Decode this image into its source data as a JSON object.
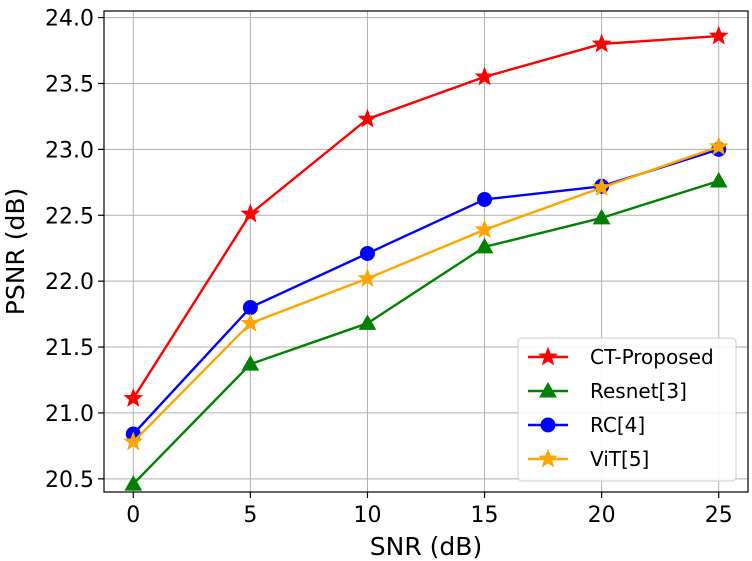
{
  "chart_data": {
    "type": "line",
    "title": "",
    "xlabel": "SNR (dB)",
    "ylabel": "PSNR (dB)",
    "x": [
      0,
      5,
      10,
      15,
      20,
      25
    ],
    "xlim": [
      -1.25,
      26.25
    ],
    "ylim": [
      20.4,
      24.05
    ],
    "xticks": [
      0,
      5,
      10,
      15,
      20,
      25
    ],
    "yticks": [
      20.5,
      21.0,
      21.5,
      22.0,
      22.5,
      23.0,
      23.5,
      24.0
    ],
    "grid": true,
    "legend_position": "lower-right",
    "series": [
      {
        "name": "CT-Proposed",
        "color": "#ff0000",
        "marker": "star",
        "values": [
          21.11,
          22.51,
          23.23,
          23.55,
          23.8,
          23.86
        ]
      },
      {
        "name": "Resnet[3]",
        "color": "#008000",
        "marker": "triangle",
        "values": [
          20.46,
          21.37,
          21.68,
          22.26,
          22.48,
          22.76
        ]
      },
      {
        "name": "RC[4]",
        "color": "#0000ff",
        "marker": "circle",
        "values": [
          20.84,
          21.8,
          22.21,
          22.62,
          22.72,
          23.0
        ]
      },
      {
        "name": "ViT[5]",
        "color": "#ffa500",
        "marker": "star",
        "values": [
          20.78,
          21.68,
          22.02,
          22.39,
          22.71,
          23.02
        ]
      }
    ]
  }
}
